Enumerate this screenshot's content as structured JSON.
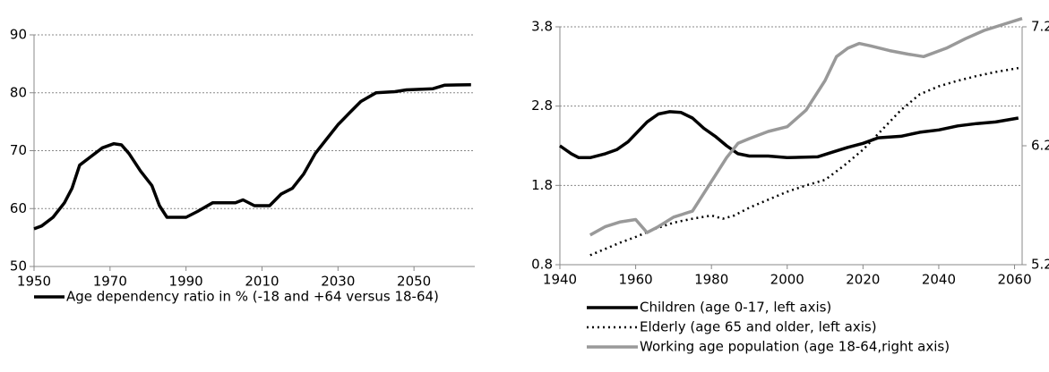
{
  "chart_data": [
    {
      "type": "line",
      "xlim": [
        1950,
        2066
      ],
      "xticks": [
        1950,
        1970,
        1990,
        2010,
        2030,
        2050
      ],
      "ylim": [
        50,
        90
      ],
      "yticks": [
        50,
        60,
        70,
        80,
        90
      ],
      "grid": true,
      "series": [
        {
          "name": "Age dependency ratio in % (-18 and +64 versus 18-64)",
          "color": "#000000",
          "style": "solid",
          "x": [
            1950,
            1952,
            1955,
            1958,
            1960,
            1962,
            1965,
            1968,
            1971,
            1973,
            1975,
            1978,
            1981,
            1983,
            1985,
            1990,
            1993,
            1997,
            2003,
            2005,
            2008,
            2012,
            2015,
            2018,
            2021,
            2024,
            2027,
            2030,
            2033,
            2036,
            2040,
            2045,
            2048,
            2055,
            2058,
            2065
          ],
          "values": [
            56.5,
            57,
            58.5,
            61,
            63.5,
            67.5,
            69,
            70.5,
            71.2,
            71,
            69.5,
            66.5,
            64,
            60.5,
            58.5,
            58.5,
            59.5,
            61,
            61,
            61.5,
            60.5,
            60.5,
            62.5,
            63.5,
            66,
            69.5,
            72,
            74.5,
            76.5,
            78.5,
            80,
            80.2,
            80.5,
            80.7,
            81.3,
            81.4
          ]
        }
      ]
    },
    {
      "type": "line",
      "xlim": [
        1940,
        2062
      ],
      "xticks": [
        1940,
        1960,
        1980,
        2000,
        2020,
        2040,
        2060
      ],
      "ylim": [
        0.8,
        3.8
      ],
      "yticks": [
        0.8,
        1.8,
        2.8,
        3.8
      ],
      "y2lim": [
        5.2,
        7.2
      ],
      "y2ticks": [
        5.2,
        6.2,
        7.2
      ],
      "grid": true,
      "series": [
        {
          "name": "Children (age 0-17, left axis)",
          "color": "#000000",
          "style": "solid",
          "x": [
            1940,
            1943,
            1945,
            1948,
            1952,
            1955,
            1958,
            1961,
            1963,
            1966,
            1969,
            1972,
            1975,
            1978,
            1981,
            1984,
            1987,
            1990,
            1995,
            2000,
            2008,
            2012,
            2016,
            2020,
            2024,
            2030,
            2035,
            2040,
            2045,
            2050,
            2055,
            2061
          ],
          "values": [
            2.3,
            2.2,
            2.15,
            2.15,
            2.2,
            2.25,
            2.35,
            2.5,
            2.6,
            2.7,
            2.73,
            2.72,
            2.65,
            2.52,
            2.42,
            2.3,
            2.2,
            2.17,
            2.17,
            2.15,
            2.16,
            2.22,
            2.28,
            2.33,
            2.4,
            2.42,
            2.47,
            2.5,
            2.55,
            2.58,
            2.6,
            2.65
          ]
        },
        {
          "name": "Elderly (age 65 and older, left axis)",
          "color": "#000000",
          "style": "dotted",
          "x": [
            1948,
            1952,
            1956,
            1960,
            1965,
            1970,
            1975,
            1980,
            1983,
            1986,
            1990,
            1995,
            2000,
            2005,
            2010,
            2015,
            2020,
            2025,
            2030,
            2035,
            2040,
            2045,
            2050,
            2055,
            2061
          ],
          "values": [
            0.92,
            1.0,
            1.08,
            1.15,
            1.25,
            1.33,
            1.38,
            1.42,
            1.38,
            1.42,
            1.52,
            1.62,
            1.72,
            1.8,
            1.87,
            2.05,
            2.25,
            2.5,
            2.75,
            2.95,
            3.05,
            3.12,
            3.18,
            3.23,
            3.28
          ]
        },
        {
          "name": "Working age population (age 18-64,right axis)",
          "color": "#999999",
          "style": "solid",
          "axis": "y2",
          "x": [
            1948,
            1952,
            1956,
            1960,
            1963,
            1966,
            1970,
            1975,
            1978,
            1981,
            1984,
            1987,
            1990,
            1995,
            2000,
            2005,
            2010,
            2013,
            2016,
            2019,
            2022,
            2027,
            2032,
            2036,
            2042,
            2047,
            2052,
            2058,
            2062
          ],
          "values": [
            5.45,
            5.52,
            5.56,
            5.58,
            5.47,
            5.52,
            5.6,
            5.65,
            5.8,
            5.95,
            6.1,
            6.22,
            6.26,
            6.32,
            6.36,
            6.5,
            6.75,
            6.95,
            7.02,
            7.06,
            7.04,
            7.0,
            6.97,
            6.95,
            7.02,
            7.1,
            7.17,
            7.23,
            7.27
          ]
        }
      ]
    }
  ]
}
